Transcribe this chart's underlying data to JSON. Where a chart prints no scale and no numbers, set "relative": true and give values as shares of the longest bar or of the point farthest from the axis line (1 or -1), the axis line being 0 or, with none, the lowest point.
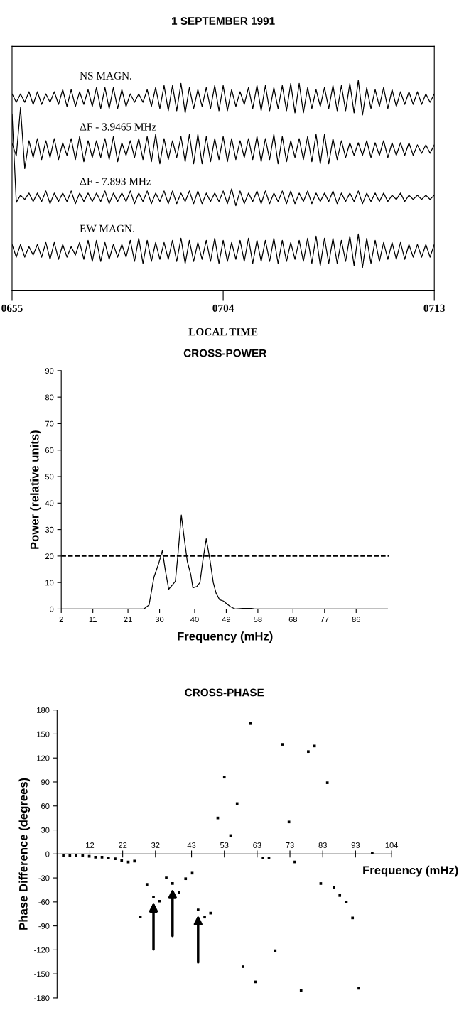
{
  "chart_data": [
    {
      "type": "line",
      "title": "1 SEPTEMBER 1991",
      "xlabel": "LOCAL TIME",
      "relative": true,
      "tick_labels": "x",
      "legend": false,
      "grid": false,
      "marker": "none",
      "line_style": "solid",
      "categories": [
        "0655",
        null,
        null,
        null,
        null,
        null,
        null,
        null,
        null,
        null,
        null,
        null,
        null,
        null,
        null,
        null,
        null,
        null,
        null,
        null,
        null,
        null,
        null,
        null,
        null,
        null,
        null,
        null,
        null,
        null,
        null,
        null,
        null,
        null,
        null,
        null,
        null,
        null,
        null,
        null,
        null,
        null,
        null,
        null,
        null,
        null,
        null,
        null,
        null,
        null,
        "0704",
        null,
        null,
        null,
        null,
        null,
        null,
        null,
        null,
        null,
        null,
        null,
        null,
        null,
        null,
        null,
        null,
        null,
        null,
        null,
        null,
        null,
        null,
        null,
        null,
        null,
        null,
        null,
        null,
        null,
        null,
        null,
        null,
        null,
        null,
        null,
        null,
        null,
        null,
        null,
        null,
        null,
        null,
        null,
        null,
        null,
        null,
        null,
        null,
        null,
        "0713"
      ],
      "series": [
        {
          "name": "NS MAGN.",
          "color": "#000000",
          "values": [
            0.935,
            0.895,
            0.935,
            0.895,
            0.945,
            0.885,
            0.945,
            0.885,
            0.935,
            0.895,
            0.945,
            0.885,
            0.955,
            0.875,
            0.955,
            0.875,
            0.945,
            0.885,
            0.955,
            0.875,
            0.965,
            0.865,
            0.965,
            0.865,
            0.965,
            0.865,
            0.955,
            0.875,
            0.935,
            0.895,
            0.935,
            0.895,
            0.955,
            0.875,
            0.965,
            0.865,
            0.975,
            0.855,
            0.975,
            0.855,
            0.985,
            0.845,
            0.965,
            0.865,
            0.955,
            0.875,
            0.965,
            0.865,
            0.975,
            0.855,
            0.975,
            0.855,
            0.955,
            0.875,
            0.945,
            0.885,
            0.965,
            0.865,
            0.975,
            0.855,
            0.975,
            0.855,
            0.965,
            0.865,
            0.975,
            0.855,
            0.985,
            0.845,
            0.985,
            0.845,
            0.965,
            0.865,
            0.955,
            0.875,
            0.965,
            0.865,
            0.975,
            0.855,
            0.975,
            0.855,
            0.985,
            0.845,
            1.0,
            0.835,
            0.965,
            0.865,
            0.955,
            0.875,
            0.965,
            0.865,
            0.955,
            0.875,
            0.945,
            0.885,
            0.945,
            0.885,
            0.945,
            0.885,
            0.935,
            0.895,
            0.935
          ]
        },
        {
          "name": "ΔF - 3.9465 MHz",
          "color": "#000000",
          "values": [
            0.7,
            0.64,
            0.87,
            0.58,
            0.713,
            0.633,
            0.723,
            0.623,
            0.713,
            0.633,
            0.723,
            0.623,
            0.703,
            0.643,
            0.723,
            0.623,
            0.733,
            0.613,
            0.713,
            0.633,
            0.713,
            0.633,
            0.723,
            0.623,
            0.733,
            0.613,
            0.703,
            0.643,
            0.713,
            0.633,
            0.723,
            0.623,
            0.733,
            0.613,
            0.743,
            0.603,
            0.723,
            0.623,
            0.713,
            0.633,
            0.733,
            0.613,
            0.743,
            0.603,
            0.743,
            0.603,
            0.733,
            0.613,
            0.723,
            0.623,
            0.733,
            0.613,
            0.723,
            0.623,
            0.713,
            0.633,
            0.723,
            0.623,
            0.733,
            0.613,
            0.723,
            0.623,
            0.743,
            0.603,
            0.733,
            0.613,
            0.713,
            0.633,
            0.723,
            0.623,
            0.733,
            0.613,
            0.743,
            0.603,
            0.743,
            0.603,
            0.723,
            0.623,
            0.713,
            0.633,
            0.703,
            0.643,
            0.703,
            0.643,
            0.713,
            0.633,
            0.703,
            0.643,
            0.713,
            0.633,
            0.703,
            0.643,
            0.703,
            0.643,
            0.703,
            0.643,
            0.693,
            0.653,
            0.693,
            0.653,
            0.693
          ]
        },
        {
          "name": "ΔF - 7.893 MHz",
          "color": "#000000",
          "values": [
            0.84,
            0.42,
            0.454,
            0.434,
            0.464,
            0.424,
            0.464,
            0.424,
            0.474,
            0.414,
            0.464,
            0.424,
            0.464,
            0.424,
            0.474,
            0.414,
            0.464,
            0.424,
            0.464,
            0.424,
            0.464,
            0.424,
            0.474,
            0.414,
            0.464,
            0.424,
            0.464,
            0.424,
            0.474,
            0.414,
            0.464,
            0.424,
            0.474,
            0.414,
            0.464,
            0.424,
            0.474,
            0.414,
            0.474,
            0.414,
            0.464,
            0.424,
            0.474,
            0.414,
            0.474,
            0.414,
            0.464,
            0.424,
            0.464,
            0.424,
            0.474,
            0.414,
            0.484,
            0.404,
            0.474,
            0.414,
            0.464,
            0.424,
            0.474,
            0.414,
            0.474,
            0.414,
            0.464,
            0.424,
            0.474,
            0.414,
            0.474,
            0.414,
            0.464,
            0.424,
            0.474,
            0.414,
            0.464,
            0.424,
            0.464,
            0.424,
            0.474,
            0.414,
            0.464,
            0.424,
            0.464,
            0.424,
            0.474,
            0.414,
            0.464,
            0.424,
            0.464,
            0.424,
            0.464,
            0.424,
            0.454,
            0.434,
            0.464,
            0.424,
            0.454,
            0.434,
            0.454,
            0.434,
            0.454,
            0.434,
            0.454
          ]
        },
        {
          "name": "EW MAGN.",
          "color": "#000000",
          "values": [
            0.22,
            0.16,
            0.22,
            0.16,
            0.21,
            0.17,
            0.22,
            0.16,
            0.23,
            0.15,
            0.23,
            0.15,
            0.22,
            0.16,
            0.21,
            0.17,
            0.23,
            0.15,
            0.24,
            0.14,
            0.24,
            0.14,
            0.23,
            0.15,
            0.22,
            0.16,
            0.22,
            0.16,
            0.24,
            0.14,
            0.25,
            0.13,
            0.24,
            0.14,
            0.23,
            0.15,
            0.23,
            0.15,
            0.24,
            0.14,
            0.25,
            0.13,
            0.24,
            0.14,
            0.23,
            0.15,
            0.24,
            0.14,
            0.25,
            0.13,
            0.24,
            0.14,
            0.23,
            0.15,
            0.24,
            0.14,
            0.25,
            0.13,
            0.24,
            0.14,
            0.24,
            0.14,
            0.25,
            0.13,
            0.24,
            0.14,
            0.23,
            0.15,
            0.24,
            0.14,
            0.25,
            0.13,
            0.26,
            0.12,
            0.25,
            0.13,
            0.25,
            0.13,
            0.24,
            0.14,
            0.26,
            0.12,
            0.27,
            0.11,
            0.25,
            0.13,
            0.24,
            0.14,
            0.23,
            0.15,
            0.23,
            0.15,
            0.23,
            0.15,
            0.22,
            0.16,
            0.22,
            0.16,
            0.22,
            0.16,
            0.22
          ]
        }
      ]
    },
    {
      "type": "line",
      "title": "CROSS-POWER",
      "xlabel": "Frequency (mHz)",
      "ylabel": "Power (relative units)",
      "grid": false,
      "marker": "none",
      "line_style": "solid",
      "xlim": [
        2,
        95.3
      ],
      "xticks": [
        2,
        11,
        21,
        30,
        40,
        49,
        58,
        68,
        77,
        86
      ],
      "ylim": [
        0,
        90
      ],
      "yticks": [
        0,
        10,
        20,
        30,
        40,
        50,
        60,
        70,
        80,
        90
      ],
      "series": [
        {
          "color": "#000000",
          "x": [
            2,
            25.5,
            27.0,
            28.4,
            29.7,
            30.8,
            31.6,
            32.6,
            33.9,
            34.5,
            35.2,
            36.2,
            37.0,
            37.9,
            38.9,
            39.5,
            40.6,
            41.5,
            42.3,
            43.3,
            44.3,
            45.3,
            46.1,
            47.1,
            48.2,
            49.1,
            50.3,
            51.6,
            53.7,
            56.2,
            57.1,
            95
          ],
          "values": [
            0,
            0,
            1.5,
            12,
            17,
            22,
            15,
            7.5,
            9.5,
            10.5,
            20,
            35.5,
            27,
            18,
            13,
            8,
            8.5,
            10,
            18,
            26.5,
            19,
            10,
            6,
            3.5,
            3,
            2,
            0.8,
            0,
            0.2,
            0.2,
            0,
            0
          ]
        }
      ],
      "ref_lines": [
        {
          "axis": "y",
          "value": 20,
          "line_style": "dashed",
          "color": "#000000"
        }
      ]
    },
    {
      "type": "scatter",
      "title": "CROSS-PHASE",
      "xlabel": "Frequency (mHz)",
      "ylabel": "Phase Difference (degrees)",
      "grid": false,
      "marker": "square",
      "xlim": [
        2,
        104
      ],
      "xticks": [
        12,
        22,
        32,
        43,
        53,
        63,
        73,
        83,
        93,
        104
      ],
      "ylim": [
        -180,
        180
      ],
      "yticks": [
        -180,
        -150,
        -120,
        -90,
        -60,
        -30,
        0,
        30,
        60,
        90,
        120,
        150,
        180
      ],
      "series": [
        {
          "color": "#000000",
          "x": [
            3.9,
            5.9,
            7.8,
            9.8,
            11.8,
            13.7,
            15.7,
            17.7,
            19.7,
            21.7,
            23.7,
            25.6,
            27.4,
            29.4,
            31.4,
            33.3,
            35.3,
            37.2,
            39.2,
            41.2,
            43.2,
            45.0,
            47.0,
            48.8,
            51.0,
            53.0,
            54.9,
            56.9,
            58.7,
            61.0,
            62.5,
            64.8,
            66.6,
            68.5,
            70.7,
            72.7,
            74.5,
            76.4,
            78.6,
            80.5,
            82.4,
            84.4,
            86.4,
            88.2,
            90.2,
            92.1,
            94.0,
            98.1
          ],
          "values": [
            -2,
            -2,
            -2,
            -2,
            -3,
            -4,
            -4,
            -5,
            -6,
            -8,
            -10,
            -9,
            -79,
            -38,
            -54,
            -59,
            -30,
            -37,
            -48,
            -31,
            -24,
            -70,
            -79,
            -74,
            45,
            96,
            23,
            63,
            -141,
            163,
            -160,
            -5,
            -5,
            -121,
            137,
            40,
            -10,
            -171,
            128,
            135,
            -37,
            89,
            -42,
            -52,
            -60,
            -80,
            -168,
            1
          ]
        }
      ]
    }
  ]
}
